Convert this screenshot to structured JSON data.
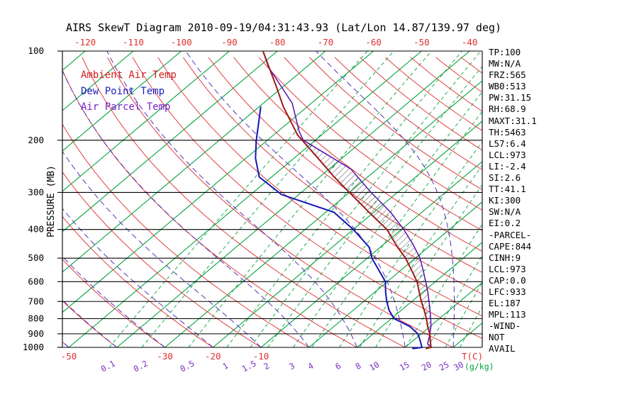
{
  "title": "AIRS SkewT Diagram 2010-09-19/04:31:43.93 (Lat/Lon 14.87/139.97 deg)",
  "legend": [
    {
      "label": "Ambient Air Temp",
      "color": "#d02020"
    },
    {
      "label": "Dew Point Temp",
      "color": "#1c1cc0"
    },
    {
      "label": "Air Parcel Temp",
      "color": "#7a22cc"
    }
  ],
  "stats_panel": {
    "lines": [
      "TP:100",
      "MW:N/A",
      "FRZ:565",
      "WB0:513",
      "PW:31.15",
      "RH:68.9",
      "MAXT:31.1",
      "TH:5463",
      "L57:6.4",
      "LCL:973",
      "LI:-2.4",
      "SI:2.6",
      "TT:41.1",
      "KI:300",
      "SW:N/A",
      "EI:0.2",
      "-PARCEL-",
      "CAPE:844",
      "CINH:9",
      "LCL:973",
      "CAP:0.0",
      "LFC:933",
      "EL:187",
      "MPL:113",
      "-WIND-",
      "NOT",
      "AVAIL"
    ]
  },
  "axes": {
    "pressure_axis_label": "PRESSURE (MB)",
    "pressure_ticks": [
      100,
      200,
      300,
      400,
      500,
      600,
      700,
      800,
      900,
      1000
    ],
    "top_temperature_ticks": [
      -120,
      -110,
      -100,
      -90,
      -80,
      -70,
      -60,
      -50,
      -40
    ],
    "bottom_temperature_ticks": [
      -50,
      -30,
      -20,
      -10
    ],
    "temperature_unit_label": "T(C)",
    "mixing_ratio_ticks": [
      0.1,
      0.2,
      0.5,
      1,
      1.5,
      2,
      3,
      4,
      6,
      8,
      10,
      15,
      20,
      25,
      30
    ],
    "mixing_ratio_unit_label": "(g/kg)"
  },
  "colors": {
    "isotherm_green": "#00a33e",
    "adiabat_red": "#e04040",
    "moist_adiabat_purple": "#5533bb",
    "isobar_black": "#000000",
    "ambient_temp": "#a01818",
    "dew_point": "#1414b8",
    "parcel_temp": "#5a10b0",
    "mixing_label_purple": "#7a30c0",
    "axis_label_red": "#e03030",
    "hatch_black": "#222222"
  },
  "chart_data": {
    "type": "line",
    "variant": "skew-t-log-p",
    "title": "AIRS SkewT Diagram 2010-09-19/04:31:43.93 (Lat/Lon 14.87/139.97 deg)",
    "x_axis": {
      "label": "T(C)",
      "skewed": true,
      "bottom_range_c": [
        -51,
        36
      ]
    },
    "y_axis": {
      "label": "PRESSURE (MB)",
      "scale": "log",
      "range_mb": [
        100,
        1000
      ]
    },
    "series": [
      {
        "name": "Ambient Air Temp",
        "units": [
          "mb",
          "C"
        ],
        "points": [
          [
            1010,
            24.6
          ],
          [
            1000,
            25.4
          ],
          [
            950,
            23.6
          ],
          [
            900,
            21.8
          ],
          [
            850,
            19.5
          ],
          [
            800,
            17.3
          ],
          [
            750,
            14.8
          ],
          [
            700,
            12.0
          ],
          [
            650,
            9.2
          ],
          [
            600,
            6.2
          ],
          [
            550,
            2.3
          ],
          [
            500,
            -2.0
          ],
          [
            460,
            -6.3
          ],
          [
            400,
            -13.0
          ],
          [
            350,
            -21.0
          ],
          [
            300,
            -30.0
          ],
          [
            266,
            -37.0
          ],
          [
            230,
            -45.0
          ],
          [
            192,
            -55.0
          ],
          [
            154,
            -65.0
          ],
          [
            130,
            -72.0
          ],
          [
            100,
            -83.0
          ]
        ]
      },
      {
        "name": "Dew Point Temp",
        "units": [
          "mb",
          "C"
        ],
        "points": [
          [
            1010,
            21.8
          ],
          [
            1000,
            23.5
          ],
          [
            950,
            21.5
          ],
          [
            900,
            19.3
          ],
          [
            850,
            15.8
          ],
          [
            800,
            10.6
          ],
          [
            750,
            7.5
          ],
          [
            700,
            4.8
          ],
          [
            650,
            2.2
          ],
          [
            600,
            -0.4
          ],
          [
            550,
            -4.5
          ],
          [
            500,
            -9.0
          ],
          [
            460,
            -12.2
          ],
          [
            400,
            -20.0
          ],
          [
            350,
            -28.3
          ],
          [
            305,
            -43.6
          ],
          [
            266,
            -52.6
          ],
          [
            230,
            -58.0
          ],
          [
            202,
            -62.0
          ],
          [
            154,
            -69.7
          ]
        ]
      },
      {
        "name": "Air Parcel Temp",
        "units": [
          "mb",
          "C"
        ],
        "points": [
          [
            1000,
            25.4
          ],
          [
            973,
            23.8
          ],
          [
            950,
            23.2
          ],
          [
            900,
            21.8
          ],
          [
            850,
            20.2
          ],
          [
            800,
            18.2
          ],
          [
            750,
            16.0
          ],
          [
            700,
            13.6
          ],
          [
            650,
            11.0
          ],
          [
            600,
            8.0
          ],
          [
            550,
            4.7
          ],
          [
            500,
            1.0
          ],
          [
            450,
            -3.8
          ],
          [
            400,
            -9.5
          ],
          [
            350,
            -16.5
          ],
          [
            300,
            -25.5
          ],
          [
            250,
            -35.5
          ],
          [
            200,
            -52.5
          ],
          [
            187,
            -55.5
          ],
          [
            150,
            -64.0
          ],
          [
            113,
            -78.0
          ],
          [
            100,
            -83.0
          ]
        ]
      }
    ],
    "cape_region": {
      "from_pressure": 933,
      "to_pressure": 192,
      "style": "hatched"
    },
    "background_lines": {
      "isobars_mb": [
        100,
        200,
        300,
        400,
        500,
        600,
        700,
        800,
        900,
        1000
      ],
      "isotherms_c": {
        "min": -120,
        "max": 40,
        "step": 10
      },
      "dry_adiabats_theta_c": {
        "min": -50,
        "max": 180,
        "step": 10
      },
      "moist_adiabats_thetaw_c": {
        "min": -60,
        "max": 50,
        "step": 10
      },
      "mixing_ratio_g_kg": [
        0.1,
        0.2,
        0.5,
        1,
        1.5,
        2,
        3,
        4,
        6,
        8,
        10,
        15,
        20,
        25,
        30
      ]
    }
  }
}
